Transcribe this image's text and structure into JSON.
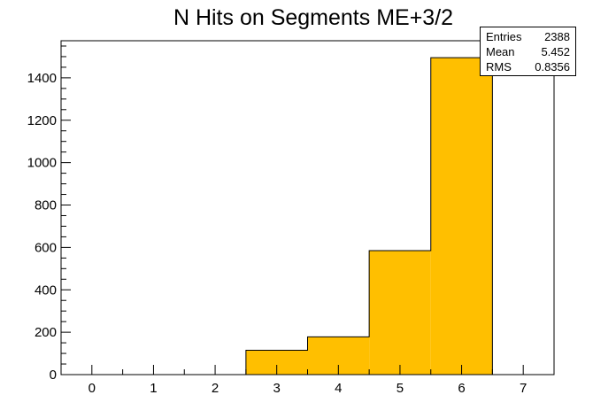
{
  "chart_data": {
    "type": "bar",
    "title": "N Hits on Segments ME+3/2",
    "xlabel": "",
    "ylabel": "",
    "bin_edges": [
      -0.5,
      0.5,
      1.5,
      2.5,
      3.5,
      4.5,
      5.5,
      6.5,
      7.5
    ],
    "values": [
      0,
      0,
      0,
      115,
      178,
      585,
      1495,
      0
    ],
    "xlim": [
      -0.5,
      7.5
    ],
    "ylim": [
      0,
      1575
    ],
    "x_ticks": [
      "0",
      "1",
      "2",
      "3",
      "4",
      "5",
      "6",
      "7"
    ],
    "y_ticks": [
      "0",
      "200",
      "400",
      "600",
      "800",
      "1000",
      "1200",
      "1400"
    ],
    "grid": false,
    "bar_color": "#ffbf00",
    "stats": [
      {
        "label": "Entries",
        "value": "2388"
      },
      {
        "label": "Mean",
        "value": "5.452"
      },
      {
        "label": "RMS",
        "value": "0.8356"
      }
    ]
  }
}
